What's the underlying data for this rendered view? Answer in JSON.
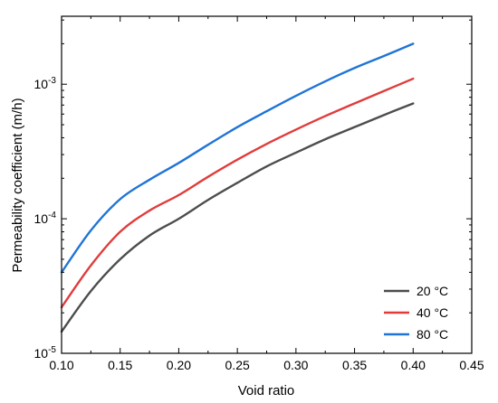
{
  "chart_data": {
    "type": "line",
    "title": "",
    "xlabel": "Void ratio",
    "ylabel": "Permeability coefficient (m/h)",
    "xlim": [
      0.1,
      0.45
    ],
    "ylim": [
      1e-05,
      0.0032
    ],
    "yscale": "log",
    "xticks": [
      "0.10",
      "0.15",
      "0.20",
      "0.25",
      "0.30",
      "0.35",
      "0.40",
      "0.45"
    ],
    "yticks": [
      {
        "value": 1e-05,
        "base": "10",
        "exp": "-5"
      },
      {
        "value": 0.0001,
        "base": "10",
        "exp": "-4"
      },
      {
        "value": 0.001,
        "base": "10",
        "exp": "-3"
      }
    ],
    "grid": false,
    "legend_position": "bottom-right",
    "x": [
      0.1,
      0.125,
      0.15,
      0.175,
      0.2,
      0.225,
      0.25,
      0.275,
      0.3,
      0.325,
      0.35,
      0.375,
      0.4
    ],
    "series": [
      {
        "name": "20 °C",
        "color": "#4d4d4d",
        "values": [
          1.45e-05,
          2.9e-05,
          5e-05,
          7.5e-05,
          0.0001,
          0.000138,
          0.000185,
          0.000245,
          0.00031,
          0.00039,
          0.00048,
          0.00059,
          0.00072
        ]
      },
      {
        "name": "40 °C",
        "color": "#e03c3c",
        "values": [
          2.2e-05,
          4.5e-05,
          8e-05,
          0.000115,
          0.00015,
          0.000205,
          0.000275,
          0.00036,
          0.00046,
          0.00058,
          0.00072,
          0.00089,
          0.0011
        ]
      },
      {
        "name": "80 °C",
        "color": "#1f74d6",
        "values": [
          4e-05,
          8.2e-05,
          0.00014,
          0.000195,
          0.00026,
          0.000355,
          0.00048,
          0.00063,
          0.00082,
          0.00105,
          0.00132,
          0.00162,
          0.002
        ]
      }
    ]
  }
}
